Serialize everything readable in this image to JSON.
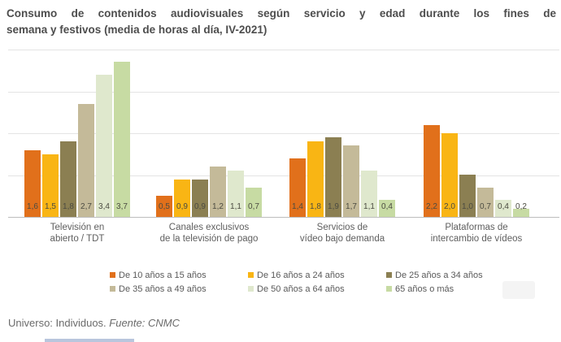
{
  "title": "Consumo de contenidos audiovisuales según servicio y edad durante los fines de semana y festivos (media de horas al día, IV-2021)",
  "title_lines": [
    "Consumo de contenidos audiovisuales según servicio y edad durante los fines de",
    "semana y festivos (media de horas al día, IV-2021)"
  ],
  "footer": {
    "universe": "Universo: Individuos. ",
    "source": "Fuente: CNMC"
  },
  "decorations": {
    "bottom_bar_color": "#b9c6dd"
  },
  "chart_data": {
    "type": "bar",
    "title": "Consumo de contenidos audiovisuales según servicio y edad durante los fines de semana y festivos (media de horas al día, IV-2021)",
    "categories": [
      "Televisión en abierto / TDT",
      "Canales exclusivos de la televisión de pago",
      "Servicios de vídeo bajo demanda",
      "Plataformas de intercambio de vídeos"
    ],
    "category_lines": [
      [
        "Televisión en",
        "abierto / TDT"
      ],
      [
        "Canales exclusivos",
        "de la televisión de pago"
      ],
      [
        "Servicios de",
        "vídeo bajo demanda"
      ],
      [
        "Plataformas de",
        "intercambio de vídeos"
      ]
    ],
    "series": [
      {
        "name": "De 10 años a 15 años",
        "color": "#e1701b",
        "values": [
          1.6,
          0.5,
          1.4,
          2.2
        ]
      },
      {
        "name": "De 16 años a 24 años",
        "color": "#f9b514",
        "values": [
          1.5,
          0.9,
          1.8,
          2.0
        ]
      },
      {
        "name": "De 25 años a 34 años",
        "color": "#8b7f52",
        "values": [
          1.8,
          0.9,
          1.9,
          1.0
        ]
      },
      {
        "name": "De 35 años a 49 años",
        "color": "#c4ba99",
        "values": [
          2.7,
          1.2,
          1.7,
          0.7
        ]
      },
      {
        "name": "De 50 años a 64 años",
        "color": "#dfe8cd",
        "values": [
          3.4,
          1.1,
          1.1,
          0.4
        ]
      },
      {
        "name": "65 años o más",
        "color": "#c7dba3",
        "values": [
          3.7,
          0.7,
          0.4,
          0.2
        ]
      }
    ],
    "ylabel": "media de horas al día",
    "xlabel": "",
    "ylim": [
      0,
      4
    ],
    "gridlines": [
      0,
      1,
      2,
      3,
      4
    ],
    "grid": true,
    "y_axis_labels_visible": false,
    "legend_position": "bottom",
    "value_label_decimal_separator": ","
  }
}
